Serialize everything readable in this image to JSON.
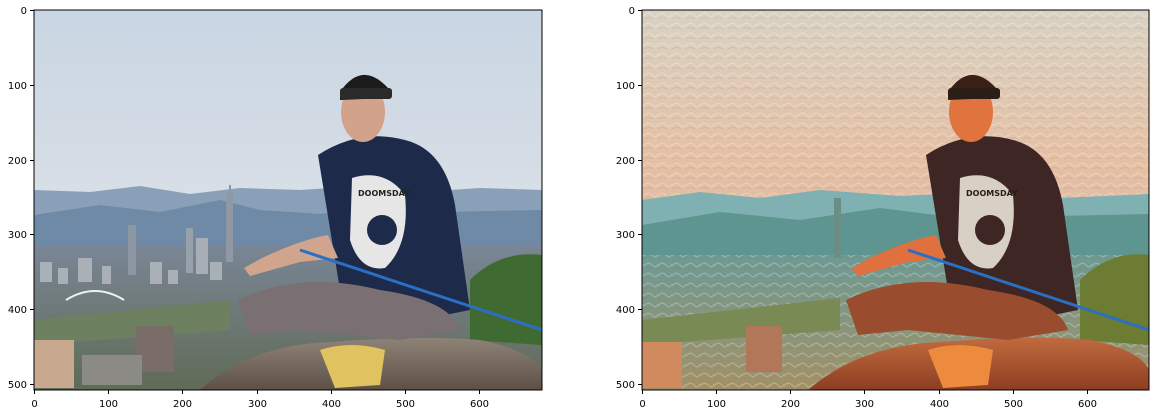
{
  "figure": {
    "panels": [
      {
        "name": "original-photo-panel",
        "image_label": "photo of a man sitting on a rock above a city skyline",
        "y_ticks": [
          "0",
          "100",
          "200",
          "300",
          "400",
          "500"
        ],
        "x_ticks": [
          "0",
          "100",
          "200",
          "300",
          "400",
          "500",
          "600"
        ],
        "shirt_text": "DOOMSDAY"
      },
      {
        "name": "stylized-photo-panel",
        "image_label": "style-transferred painting of the same photo",
        "y_ticks": [
          "0",
          "100",
          "200",
          "300",
          "400",
          "500"
        ],
        "x_ticks": [
          "0",
          "100",
          "200",
          "300",
          "400",
          "500",
          "600"
        ],
        "shirt_text": "DOOMSDAY"
      }
    ]
  }
}
